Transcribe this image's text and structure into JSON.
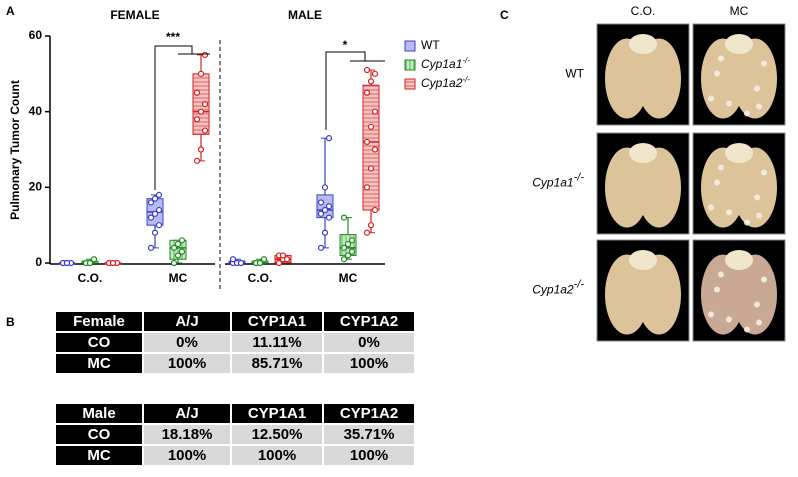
{
  "panel_labels": [
    "A",
    "B",
    "C"
  ],
  "chart_data": {
    "type": "box",
    "ylabel": "Pulmonary Tumor Count",
    "ylim": [
      0,
      60
    ],
    "yticks": [
      0,
      20,
      40,
      60
    ],
    "panels": [
      "FEMALE",
      "MALE"
    ],
    "categories": [
      "C.O.",
      "MC"
    ],
    "significance": [
      "***",
      "*"
    ],
    "series": [
      {
        "name": "WT",
        "color": "#3b3fc4",
        "fill": "#b9bbee",
        "pattern": "solid",
        "boxes": [
          {
            "min": 0,
            "q1": 0,
            "median": 0,
            "q3": 0,
            "max": 0,
            "points": [
              0,
              0,
              0,
              0,
              0
            ]
          },
          {
            "min": 4,
            "q1": 10,
            "median": 13.5,
            "q3": 17,
            "max": 18,
            "points": [
              4,
              8,
              10,
              12,
              13,
              14,
              16,
              17,
              18
            ]
          },
          {
            "min": 0,
            "q1": 0,
            "median": 0,
            "q3": 0.5,
            "max": 1,
            "points": [
              0,
              0,
              0,
              1,
              0,
              0
            ]
          },
          {
            "min": 4,
            "q1": 12,
            "median": 14,
            "q3": 18,
            "max": 33,
            "points": [
              4,
              8,
              12,
              13,
              14,
              15,
              16,
              20,
              33
            ]
          }
        ]
      },
      {
        "name": "Cyp1a1",
        "superscript": "-/-",
        "color": "#1f8a1f",
        "fill": "#c4e8c4",
        "pattern": "vertical",
        "boxes": [
          {
            "min": 0,
            "q1": 0,
            "median": 0,
            "q3": 0.5,
            "max": 1,
            "points": [
              0,
              0,
              1,
              0,
              0
            ]
          },
          {
            "min": 0,
            "q1": 1,
            "median": 4,
            "q3": 6,
            "max": 6,
            "points": [
              0,
              2,
              3,
              4,
              5,
              6
            ]
          },
          {
            "min": 0,
            "q1": 0,
            "median": 0,
            "q3": 0.5,
            "max": 1,
            "points": [
              0,
              0,
              1,
              0,
              0
            ]
          },
          {
            "min": 1,
            "q1": 2,
            "median": 4,
            "q3": 7.5,
            "max": 12,
            "points": [
              1,
              2,
              3,
              4,
              5,
              6,
              12
            ]
          }
        ]
      },
      {
        "name": "Cyp1a2",
        "superscript": "-/-",
        "color": "#d42020",
        "fill": "#f4c4c4",
        "pattern": "horizontal",
        "boxes": [
          {
            "min": 0,
            "q1": 0,
            "median": 0,
            "q3": 0,
            "max": 0,
            "points": [
              0,
              0,
              0,
              0,
              0
            ]
          },
          {
            "min": 27,
            "q1": 34,
            "median": 40,
            "q3": 50,
            "max": 55,
            "points": [
              27,
              30,
              35,
              38,
              40,
              42,
              45,
              50,
              55
            ]
          },
          {
            "min": 0,
            "q1": 0,
            "median": 1,
            "q3": 2,
            "max": 2,
            "points": [
              0,
              1,
              1,
              2,
              2
            ]
          },
          {
            "min": 8,
            "q1": 14,
            "median": 32,
            "q3": 47,
            "max": 51,
            "points": [
              8,
              10,
              14,
              20,
              25,
              30,
              32,
              36,
              40,
              45,
              48,
              50,
              51
            ]
          }
        ]
      }
    ]
  },
  "tables": [
    {
      "header": [
        "Female",
        "A/J",
        "CYP1A1",
        "CYP1A2"
      ],
      "rows": [
        [
          "CO",
          "0%",
          "11.11%",
          "0%"
        ],
        [
          "MC",
          "100%",
          "85.71%",
          "100%"
        ]
      ]
    },
    {
      "header": [
        "Male",
        "A/J",
        "CYP1A1",
        "CYP1A2"
      ],
      "rows": [
        [
          "CO",
          "18.18%",
          "12.50%",
          "35.71%"
        ],
        [
          "MC",
          "100%",
          "100%",
          "100%"
        ]
      ]
    }
  ],
  "photo_panel": {
    "columns": [
      "C.O.",
      "MC"
    ],
    "rows": [
      {
        "name": "WT"
      },
      {
        "name": "Cyp1a1",
        "superscript": "-/-"
      },
      {
        "name": "Cyp1a2",
        "superscript": "-/-"
      }
    ]
  }
}
